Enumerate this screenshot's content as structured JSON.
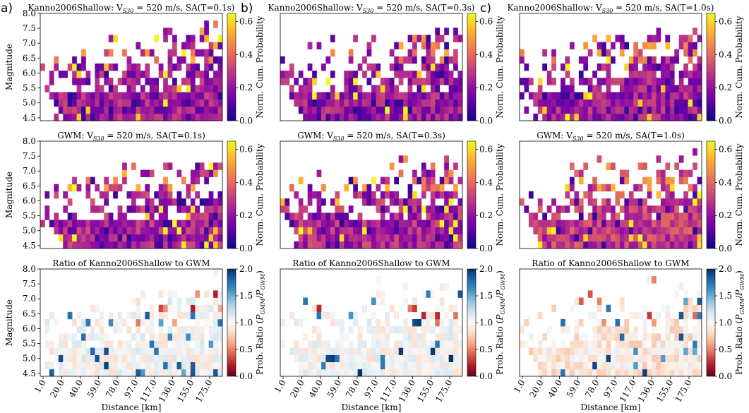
{
  "figure": {
    "panel_letters": [
      "a)",
      "b)",
      "c)"
    ],
    "common_xlabel": "Distance [km]",
    "common_ylabel": "Magnitude"
  },
  "colorbars": {
    "probability": {
      "label": "Norm. Cum. Probability",
      "ticks": [
        "0.0",
        "0.2",
        "0.4",
        "0.6"
      ],
      "range": [
        0.0,
        0.65
      ],
      "colormap": "plasma"
    },
    "ratio": {
      "label_prefix": "Prob. Ratio (",
      "label_p1": "P",
      "label_s1": "GMM",
      "label_mid": "/",
      "label_p2": "P",
      "label_s2": "GWM",
      "label_suffix": ")",
      "ticks": [
        "0.0",
        "0.5",
        "1.0",
        "1.5",
        "2.0"
      ],
      "range": [
        0.0,
        2.0
      ],
      "colormap": "RdBu"
    }
  },
  "chart_data": [
    {
      "type": "heatmap",
      "row": 0,
      "col": 0,
      "title_pre": "Kanno2006Shallow: V",
      "title_sub": "S30",
      "title_post": " = 520 m/s, SA(T=0.1s)",
      "seed": 11,
      "kind": "prob",
      "bias": 0.0,
      "xlabel": "",
      "ylabel": "Magnitude",
      "ylim": [
        4.4,
        8.0
      ],
      "yticks": [
        "4.5",
        "5.0",
        "5.5",
        "6.0",
        "6.5",
        "7.0",
        "7.5",
        "8.0"
      ]
    },
    {
      "type": "heatmap",
      "row": 0,
      "col": 1,
      "title_pre": "Kanno2006Shallow: V",
      "title_sub": "S30",
      "title_post": " = 520 m/s, SA(T=0.3s)",
      "seed": 23,
      "kind": "prob",
      "bias": 0.0,
      "xlabel": "",
      "ylabel": "",
      "ylim": [
        4.4,
        8.0
      ],
      "yticks": []
    },
    {
      "type": "heatmap",
      "row": 0,
      "col": 2,
      "title_pre": "Kanno2006Shallow: V",
      "title_sub": "S30",
      "title_post": " = 520 m/s, SA(T=1.0s)",
      "seed": 37,
      "kind": "prob",
      "bias": 0.0,
      "xlabel": "",
      "ylabel": "",
      "ylim": [
        4.4,
        8.0
      ],
      "yticks": []
    },
    {
      "type": "heatmap",
      "row": 1,
      "col": 0,
      "title_pre": "GWM: V",
      "title_sub": "S30",
      "title_post": " = 520 m/s, SA(T=0.1s)",
      "seed": 51,
      "kind": "prob",
      "bias": 0.02,
      "xlabel": "",
      "ylabel": "Magnitude",
      "ylim": [
        4.4,
        8.0
      ],
      "yticks": [
        "4.5",
        "5.0",
        "5.5",
        "6.0",
        "6.5",
        "7.0",
        "7.5",
        "8.0"
      ]
    },
    {
      "type": "heatmap",
      "row": 1,
      "col": 1,
      "title_pre": "GWM: V",
      "title_sub": "S30",
      "title_post": " = 520 m/s, SA(T=0.3s)",
      "seed": 67,
      "kind": "prob",
      "bias": 0.03,
      "xlabel": "",
      "ylabel": "",
      "ylim": [
        4.4,
        8.0
      ],
      "yticks": []
    },
    {
      "type": "heatmap",
      "row": 1,
      "col": 2,
      "title_pre": "GWM: V",
      "title_sub": "S30",
      "title_post": " = 520 m/s, SA(T=1.0s)",
      "seed": 79,
      "kind": "prob",
      "bias": 0.08,
      "xlabel": "",
      "ylabel": "",
      "ylim": [
        4.4,
        8.0
      ],
      "yticks": []
    },
    {
      "type": "heatmap",
      "row": 2,
      "col": 0,
      "title": "Ratio of Kanno2006Shallow to GWM",
      "seed": 91,
      "kind": "ratio",
      "bias": 0.0,
      "xlabel": "Distance [km]",
      "ylabel": "Magnitude",
      "ylim": [
        4.4,
        8.0
      ],
      "yticks": [
        "4.5",
        "5.0",
        "5.5",
        "6.0",
        "6.5",
        "7.0",
        "7.5",
        "8.0"
      ],
      "xticks": [
        "1.0",
        "20.0",
        "40.0",
        "59.0",
        "78.0",
        "97.0",
        "117.0",
        "136.0",
        "155.0",
        "175.0"
      ]
    },
    {
      "type": "heatmap",
      "row": 2,
      "col": 1,
      "title": "Ratio of Kanno2006Shallow to GWM",
      "seed": 103,
      "kind": "ratio",
      "bias": 0.0,
      "xlabel": "Distance [km]",
      "ylabel": "",
      "ylim": [
        4.4,
        8.0
      ],
      "yticks": [],
      "xticks": [
        "1.0",
        "20.0",
        "40.0",
        "59.0",
        "78.0",
        "97.0",
        "117.0",
        "136.0",
        "155.0",
        "175.0"
      ]
    },
    {
      "type": "heatmap",
      "row": 2,
      "col": 2,
      "title": "Ratio of Kanno2006Shallow to GWM",
      "seed": 127,
      "kind": "ratio",
      "bias": -0.1,
      "xlabel": "Distance [km]",
      "ylabel": "",
      "ylim": [
        4.4,
        8.0
      ],
      "yticks": [],
      "xticks": [
        "1.0",
        "20.0",
        "40.0",
        "59.0",
        "78.0",
        "97.0",
        "117.0",
        "136.0",
        "155.0",
        "175.0"
      ]
    }
  ]
}
